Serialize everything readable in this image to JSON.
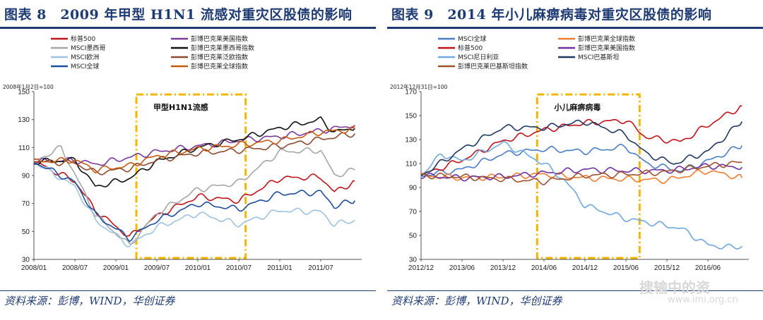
{
  "panels": [
    {
      "title": "图表 8　2009 年甲型 H1N1 流感对重灾区股债的影响",
      "source": "资料来源：彭博，WIND，华创证券"
    },
    {
      "title": "图表 9　2014 年小儿麻痹病毒对重灾区股债的影响",
      "source": "资料来源：彭博，WIND，华创证券"
    }
  ],
  "watermark": {
    "main": "搜输中的资",
    "sub": "www.imi.org.cn"
  },
  "chart_data": [
    {
      "type": "line",
      "note": "2008年1月2日=100",
      "annotation": "甲型H1N1流感",
      "shaded_period": [
        "2009/04",
        "2010/08"
      ],
      "ylim": [
        30,
        150
      ],
      "yticks": [
        30,
        50,
        70,
        90,
        110,
        130,
        150
      ],
      "xlim": [
        "2008/01",
        "2012/01"
      ],
      "xticks": [
        "2008/01",
        "2008/07",
        "2009/01",
        "2009/07",
        "2010/01",
        "2010/07",
        "2011/01",
        "2011/07"
      ],
      "legend": {
        "placement": "top",
        "columns": 2
      },
      "series": [
        {
          "name": "标普500",
          "color": "#c0141b",
          "x": [
            "2008/01",
            "2008/07",
            "2008/10",
            "2009/03",
            "2009/07",
            "2010/01",
            "2010/07",
            "2011/01",
            "2011/07",
            "2011/09",
            "2011/12"
          ],
          "values": [
            100,
            86,
            65,
            46,
            61,
            75,
            72,
            88,
            89,
            78,
            86
          ]
        },
        {
          "name": "彭博巴克莱美国指数",
          "color": "#7a3a9e",
          "x": [
            "2008/01",
            "2008/07",
            "2008/10",
            "2009/03",
            "2009/07",
            "2010/01",
            "2010/07",
            "2011/01",
            "2011/07",
            "2011/12"
          ],
          "values": [
            100,
            101,
            98,
            103,
            107,
            111,
            115,
            118,
            122,
            126
          ]
        },
        {
          "name": "MSCI墨西哥",
          "color": "#a6a6a6",
          "x": [
            "2008/01",
            "2008/05",
            "2008/10",
            "2009/03",
            "2009/07",
            "2010/01",
            "2010/07",
            "2011/01",
            "2011/07",
            "2011/09",
            "2011/12"
          ],
          "values": [
            100,
            110,
            62,
            40,
            63,
            80,
            85,
            107,
            108,
            90,
            94
          ]
        },
        {
          "name": "彭博巴克莱墨西哥指数",
          "color": "#111111",
          "x": [
            "2008/01",
            "2008/07",
            "2008/10",
            "2009/03",
            "2009/07",
            "2010/01",
            "2010/07",
            "2011/01",
            "2011/07",
            "2011/09",
            "2011/12"
          ],
          "values": [
            100,
            101,
            82,
            88,
            100,
            110,
            116,
            124,
            130,
            121,
            124
          ]
        },
        {
          "name": "MSCI欧洲",
          "color": "#9ec3e0",
          "x": [
            "2008/01",
            "2008/07",
            "2008/10",
            "2009/03",
            "2009/07",
            "2010/01",
            "2010/07",
            "2011/01",
            "2011/07",
            "2011/09",
            "2011/12"
          ],
          "values": [
            100,
            82,
            58,
            40,
            53,
            63,
            55,
            65,
            64,
            55,
            58
          ]
        },
        {
          "name": "彭博巴克莱泛欧指数",
          "color": "#8c4a2f",
          "x": [
            "2008/01",
            "2008/07",
            "2008/10",
            "2009/03",
            "2009/07",
            "2010/01",
            "2010/07",
            "2011/01",
            "2011/07",
            "2011/12"
          ],
          "values": [
            100,
            99,
            92,
            95,
            101,
            106,
            108,
            111,
            116,
            120
          ]
        },
        {
          "name": "MSCI全球",
          "color": "#1f4e9c",
          "x": [
            "2008/01",
            "2008/07",
            "2008/10",
            "2009/03",
            "2009/07",
            "2010/01",
            "2010/07",
            "2011/01",
            "2011/07",
            "2011/09",
            "2011/12"
          ],
          "values": [
            100,
            85,
            62,
            45,
            58,
            70,
            66,
            77,
            78,
            68,
            72
          ]
        },
        {
          "name": "彭博巴克莱全球指数",
          "color": "#c55a11",
          "x": [
            "2008/01",
            "2008/07",
            "2008/10",
            "2009/03",
            "2009/07",
            "2010/01",
            "2010/07",
            "2011/01",
            "2011/07",
            "2011/12"
          ],
          "values": [
            100,
            101,
            94,
            97,
            104,
            109,
            112,
            115,
            121,
            123
          ]
        }
      ]
    },
    {
      "type": "line",
      "note": "2012年12月31日=100",
      "annotation": "小儿麻痹病毒",
      "shaded_period": [
        "2014/05",
        "2015/08"
      ],
      "ylim": [
        30,
        170
      ],
      "yticks": [
        30,
        50,
        70,
        90,
        110,
        130,
        150,
        170
      ],
      "xlim": [
        "2012/12",
        "2016/12"
      ],
      "xticks": [
        "2012/12",
        "2013/06",
        "2013/12",
        "2014/06",
        "2014/12",
        "2015/06",
        "2015/12",
        "2016/06"
      ],
      "legend": {
        "placement": "top",
        "columns": 2
      },
      "series": [
        {
          "name": "MSCI全球",
          "color": "#4a7ec4",
          "x": [
            "2012/12",
            "2013/06",
            "2013/12",
            "2014/06",
            "2014/12",
            "2015/06",
            "2015/09",
            "2016/02",
            "2016/06",
            "2016/11"
          ],
          "values": [
            100,
            105,
            118,
            122,
            120,
            124,
            110,
            104,
            112,
            125
          ]
        },
        {
          "name": "彭博巴克莱全球指数",
          "color": "#ed7d31",
          "x": [
            "2012/12",
            "2013/06",
            "2013/12",
            "2014/06",
            "2014/12",
            "2015/06",
            "2015/12",
            "2016/06",
            "2016/11"
          ],
          "values": [
            100,
            98,
            99,
            101,
            98,
            97,
            96,
            104,
            98
          ]
        },
        {
          "name": "标普500",
          "color": "#c0141b",
          "x": [
            "2012/12",
            "2013/06",
            "2013/12",
            "2014/06",
            "2014/12",
            "2015/06",
            "2015/09",
            "2016/02",
            "2016/06",
            "2016/11"
          ],
          "values": [
            100,
            113,
            129,
            138,
            144,
            146,
            132,
            128,
            142,
            158
          ]
        },
        {
          "name": "彭博巴克莱美国指数",
          "color": "#7030a0",
          "x": [
            "2012/12",
            "2013/06",
            "2013/12",
            "2014/06",
            "2014/12",
            "2015/06",
            "2015/12",
            "2016/06",
            "2016/11"
          ],
          "values": [
            100,
            98,
            99,
            102,
            105,
            104,
            104,
            108,
            107
          ]
        },
        {
          "name": "MSCI尼日利亚",
          "color": "#6fa8dc",
          "x": [
            "2012/12",
            "2013/03",
            "2013/06",
            "2013/12",
            "2014/06",
            "2014/09",
            "2014/12",
            "2015/06",
            "2015/12",
            "2016/02",
            "2016/06",
            "2016/09",
            "2016/11"
          ],
          "values": [
            100,
            118,
            112,
            127,
            110,
            96,
            75,
            64,
            58,
            56,
            42,
            40,
            41
          ]
        },
        {
          "name": "MSCI巴基斯坦",
          "color": "#1f3864",
          "x": [
            "2012/12",
            "2013/06",
            "2013/12",
            "2014/06",
            "2014/12",
            "2015/06",
            "2015/09",
            "2016/01",
            "2016/06",
            "2016/11"
          ],
          "values": [
            100,
            122,
            140,
            140,
            145,
            134,
            118,
            110,
            120,
            145
          ]
        },
        {
          "name": "彭博巴克莱巴基斯坦指数",
          "color": "#a0522d",
          "x": [
            "2012/12",
            "2013/06",
            "2013/12",
            "2014/06",
            "2014/12",
            "2015/06",
            "2015/12",
            "2016/06",
            "2016/11"
          ],
          "values": [
            100,
            99,
            97,
            95,
            100,
            101,
            103,
            108,
            111
          ]
        }
      ]
    }
  ]
}
